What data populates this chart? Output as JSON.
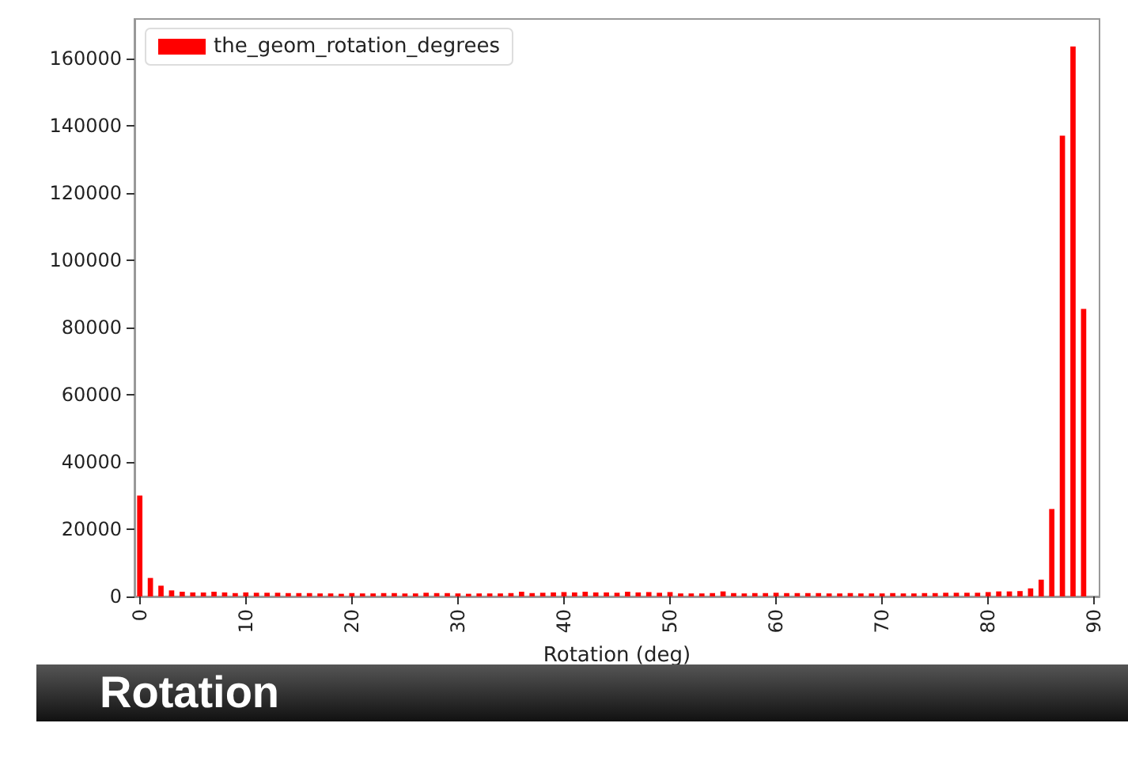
{
  "chart_data": {
    "type": "bar",
    "xlabel": "Rotation (deg)",
    "categories": [
      "0",
      null,
      null,
      null,
      null,
      null,
      null,
      null,
      null,
      null,
      "10",
      null,
      null,
      null,
      null,
      null,
      null,
      null,
      null,
      null,
      "20",
      null,
      null,
      null,
      null,
      null,
      null,
      null,
      null,
      null,
      "30",
      null,
      null,
      null,
      null,
      null,
      null,
      null,
      null,
      null,
      "40",
      null,
      null,
      null,
      null,
      null,
      null,
      null,
      null,
      null,
      "50",
      null,
      null,
      null,
      null,
      null,
      null,
      null,
      null,
      null,
      "60",
      null,
      null,
      null,
      null,
      null,
      null,
      null,
      null,
      null,
      "70",
      null,
      null,
      null,
      null,
      null,
      null,
      null,
      null,
      null,
      "80",
      null,
      null,
      null,
      null,
      null,
      null,
      null,
      null,
      null,
      "90"
    ],
    "series": [
      {
        "name": "the_geom_rotation_degrees",
        "color": "#ff0000",
        "values": [
          30000,
          5500,
          3200,
          1800,
          1400,
          1200,
          1200,
          1400,
          1200,
          1000,
          1200,
          1100,
          1100,
          1100,
          1000,
          1000,
          1000,
          900,
          900,
          800,
          1000,
          900,
          900,
          1000,
          1000,
          900,
          900,
          1100,
          1000,
          1000,
          900,
          800,
          900,
          900,
          900,
          1000,
          1400,
          1000,
          1100,
          1200,
          1300,
          1200,
          1400,
          1200,
          1200,
          1100,
          1400,
          1200,
          1300,
          1100,
          1300,
          900,
          900,
          900,
          1000,
          1500,
          1000,
          900,
          1000,
          1000,
          1100,
          1000,
          1000,
          1000,
          1000,
          900,
          900,
          1000,
          900,
          900,
          900,
          1000,
          900,
          900,
          1000,
          1000,
          1100,
          1100,
          1100,
          1100,
          1300,
          1500,
          1500,
          1600,
          2400,
          5000,
          26000,
          137000,
          163500,
          85500,
          null
        ]
      }
    ],
    "ylim": [
      0,
      171700
    ],
    "yticks": [
      0,
      20000,
      40000,
      60000,
      80000,
      100000,
      120000,
      140000,
      160000
    ],
    "grid": false,
    "legend": "top left",
    "annotations": [
      "Rotation"
    ]
  }
}
